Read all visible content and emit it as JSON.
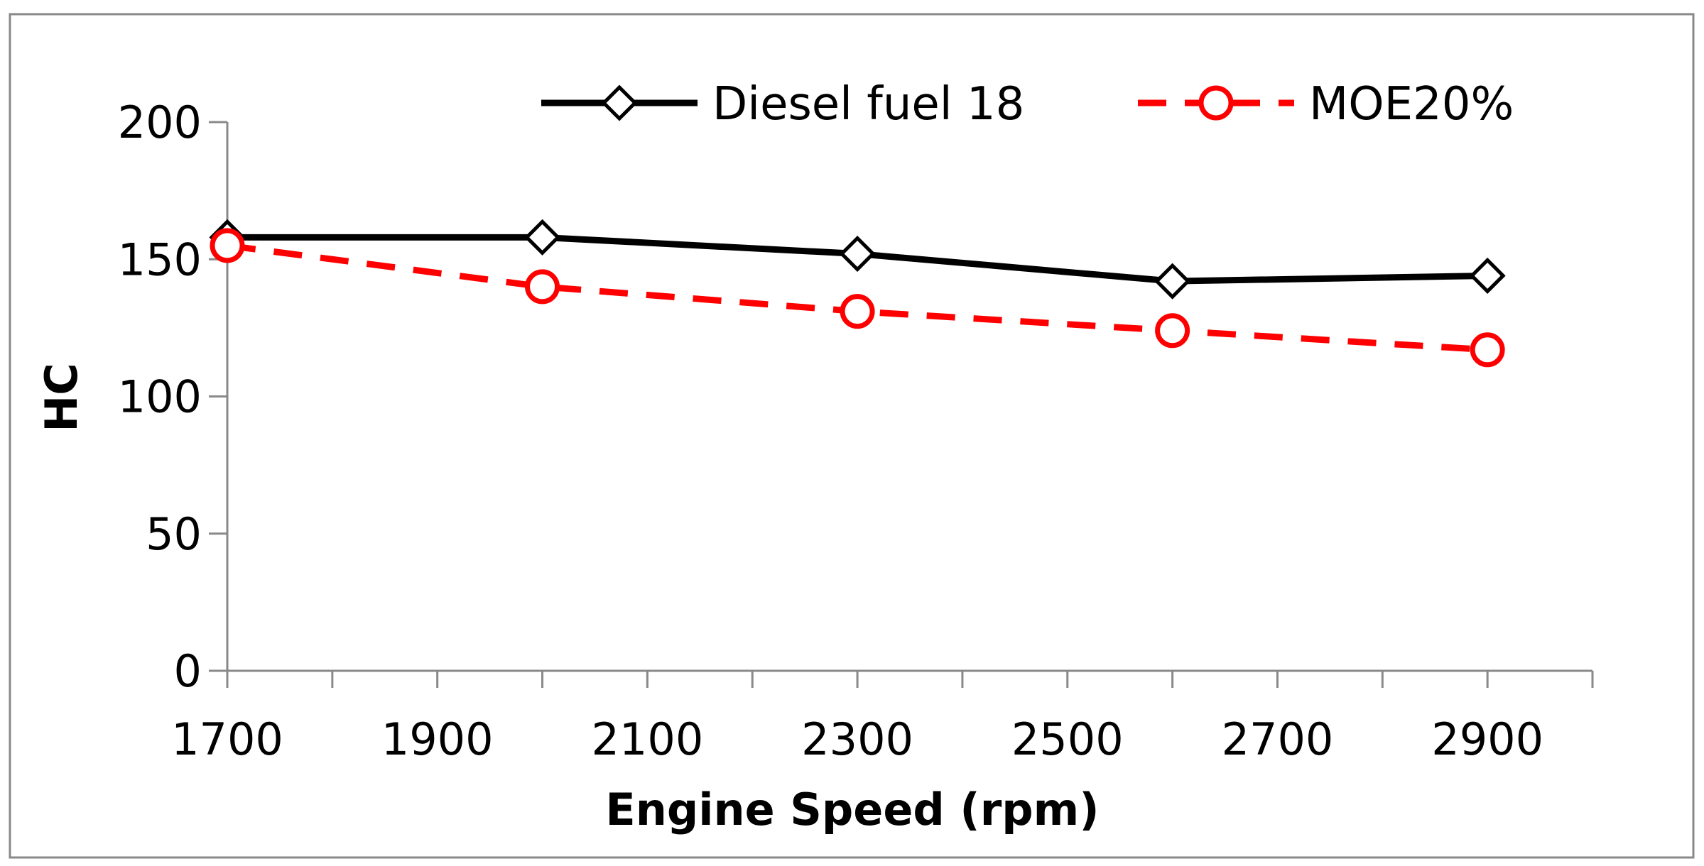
{
  "chart_data": {
    "type": "line",
    "title": "",
    "xlabel": "Engine Speed (rpm)",
    "ylabel": "HC",
    "xlim": [
      1700,
      3000
    ],
    "ylim": [
      0,
      200
    ],
    "xticks": [
      1700,
      1900,
      2100,
      2300,
      2500,
      2700,
      2900
    ],
    "yticks": [
      0,
      50,
      100,
      150,
      200
    ],
    "grid": false,
    "legend_position": "top",
    "series": [
      {
        "name": "Diesel fuel 18",
        "color": "#000000",
        "line_style": "solid",
        "marker": "diamond",
        "x": [
          1700,
          2000,
          2300,
          2600,
          2900
        ],
        "values": [
          158,
          158,
          152,
          142,
          144
        ]
      },
      {
        "name": "MOE20%",
        "color": "#ff0000",
        "line_style": "dashed",
        "marker": "circle",
        "x": [
          1700,
          2000,
          2300,
          2600,
          2900
        ],
        "values": [
          155,
          140,
          131,
          124,
          117
        ]
      }
    ]
  }
}
